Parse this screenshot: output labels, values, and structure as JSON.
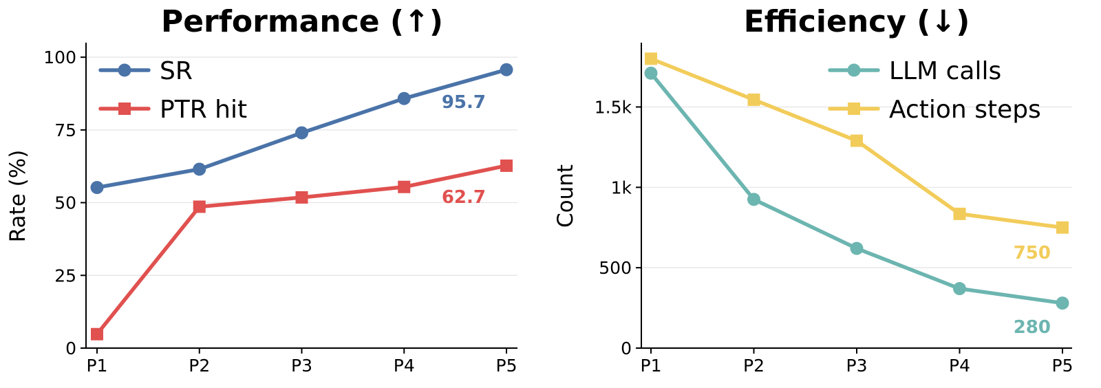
{
  "chart_data": [
    {
      "type": "line",
      "title": "Performance (↑)",
      "xlabel": "",
      "ylabel": "Rate (%)",
      "categories": [
        "P1",
        "P2",
        "P3",
        "P4",
        "P5"
      ],
      "ylim": [
        0,
        105
      ],
      "yticks": [
        0,
        25,
        50,
        75,
        100
      ],
      "ytick_labels": [
        "0",
        "25",
        "50",
        "75",
        "100"
      ],
      "grid": "horizontal",
      "legend_position": "top-left",
      "series": [
        {
          "name": "SR",
          "values": [
            55.2,
            61.5,
            74.0,
            85.8,
            95.7
          ],
          "color": "#4a73a8",
          "marker": "circle"
        },
        {
          "name": "PTR hit",
          "values": [
            4.8,
            48.6,
            51.8,
            55.4,
            62.7
          ],
          "color": "#e0514f",
          "marker": "square"
        }
      ],
      "annotations": [
        {
          "text": "95.7",
          "series": 0,
          "color": "#4a73a8"
        },
        {
          "text": "62.7",
          "series": 1,
          "color": "#e0514f"
        }
      ]
    },
    {
      "type": "line",
      "title": "Efficiency (↓)",
      "xlabel": "",
      "ylabel": "Count",
      "categories": [
        "P1",
        "P2",
        "P3",
        "P4",
        "P5"
      ],
      "ylim": [
        0,
        1900
      ],
      "yticks": [
        0,
        500,
        1000,
        1500
      ],
      "ytick_labels": [
        "0",
        "500",
        "1k",
        "1.5k"
      ],
      "grid": "horizontal",
      "legend_position": "top-right",
      "series": [
        {
          "name": "LLM calls",
          "values": [
            1710,
            925,
            620,
            370,
            280
          ],
          "color": "#6cb5b0",
          "marker": "circle"
        },
        {
          "name": "Action steps",
          "values": [
            1800,
            1545,
            1290,
            835,
            750
          ],
          "color": "#f2cc5a",
          "marker": "square"
        }
      ],
      "annotations": [
        {
          "text": "280",
          "series": 0,
          "color": "#6cb5b0"
        },
        {
          "text": "750",
          "series": 1,
          "color": "#f2cc5a"
        }
      ]
    }
  ]
}
